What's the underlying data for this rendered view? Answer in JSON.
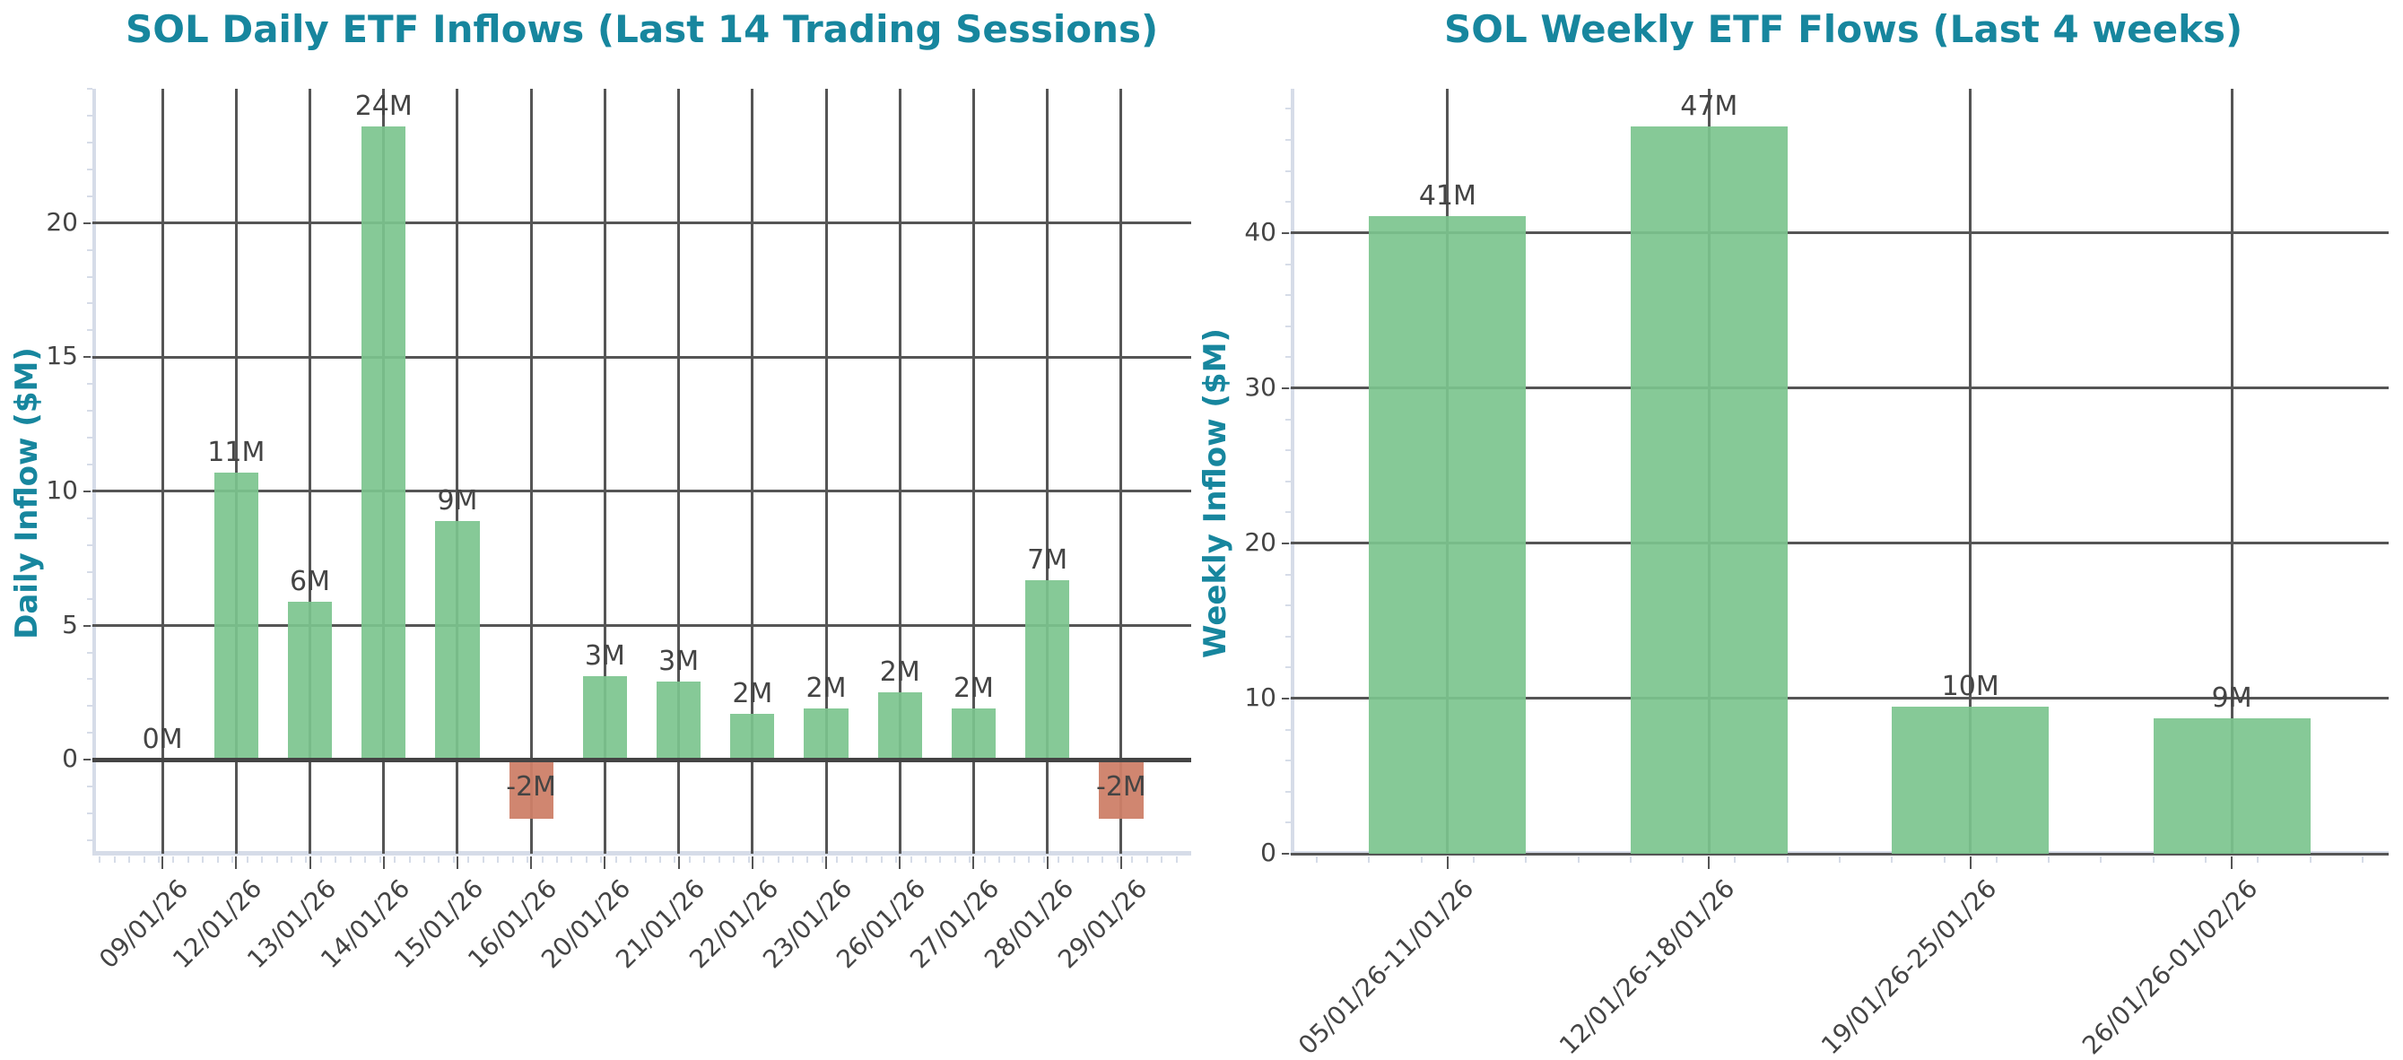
{
  "chart_data": [
    {
      "type": "bar",
      "title": "SOL Daily ETF Inflows (Last 14 Trading Sessions)",
      "xlabel": "",
      "ylabel": "Daily Inflow ($M)",
      "ylim": [
        -3.5,
        25
      ],
      "yticks": [
        0,
        5,
        10,
        15,
        20
      ],
      "grid": true,
      "categories": [
        "09/01/26",
        "12/01/26",
        "13/01/26",
        "14/01/26",
        "15/01/26",
        "16/01/26",
        "20/01/26",
        "21/01/26",
        "22/01/26",
        "23/01/26",
        "26/01/26",
        "27/01/26",
        "28/01/26",
        "29/01/26"
      ],
      "values": [
        0.0,
        10.7,
        5.9,
        23.6,
        8.9,
        -2.2,
        3.1,
        2.9,
        1.7,
        1.9,
        2.5,
        1.9,
        6.7,
        -2.2
      ],
      "data_labels": [
        "0M",
        "11M",
        "6M",
        "24M",
        "9M",
        "-2M",
        "3M",
        "3M",
        "2M",
        "2M",
        "2M",
        "2M",
        "7M",
        "-2M"
      ],
      "colors": {
        "positive": "#85c796",
        "negative": "#cd8468"
      }
    },
    {
      "type": "bar",
      "title": "SOL Weekly ETF Flows (Last 4 weeks)",
      "xlabel": "",
      "ylabel": "Weekly Inflow ($M)",
      "ylim": [
        0,
        49.3
      ],
      "yticks": [
        0,
        10,
        20,
        30,
        40
      ],
      "grid": true,
      "categories": [
        "05/01/26-11/01/26",
        "12/01/26-18/01/26",
        "19/01/26-25/01/26",
        "26/01/26-01/02/26"
      ],
      "values": [
        41.1,
        46.9,
        9.5,
        8.7
      ],
      "data_labels": [
        "41M",
        "47M",
        "10M",
        "9M"
      ],
      "colors": {
        "positive": "#85c796"
      }
    }
  ],
  "colors": {
    "title": "#17869e",
    "grid": "#555555",
    "text": "#444444",
    "spine": "#d6dce8",
    "positive_bar": "#85c796",
    "negative_bar": "#cd8468"
  }
}
